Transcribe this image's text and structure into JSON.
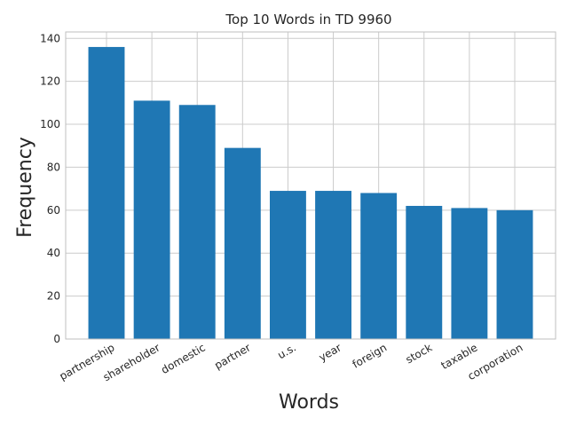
{
  "chart_data": {
    "type": "bar",
    "title": "Top 10 Words in TD 9960",
    "xlabel": "Words",
    "ylabel": "Frequency",
    "categories": [
      "partnership",
      "shareholder",
      "domestic",
      "partner",
      "u.s.",
      "year",
      "foreign",
      "stock",
      "taxable",
      "corporation"
    ],
    "values": [
      136,
      111,
      109,
      89,
      69,
      69,
      68,
      62,
      61,
      60
    ],
    "ylim": [
      0,
      143
    ],
    "yticks": [
      0,
      20,
      40,
      60,
      80,
      100,
      120,
      140
    ],
    "grid": true,
    "bar_color": "#1f77b4"
  }
}
